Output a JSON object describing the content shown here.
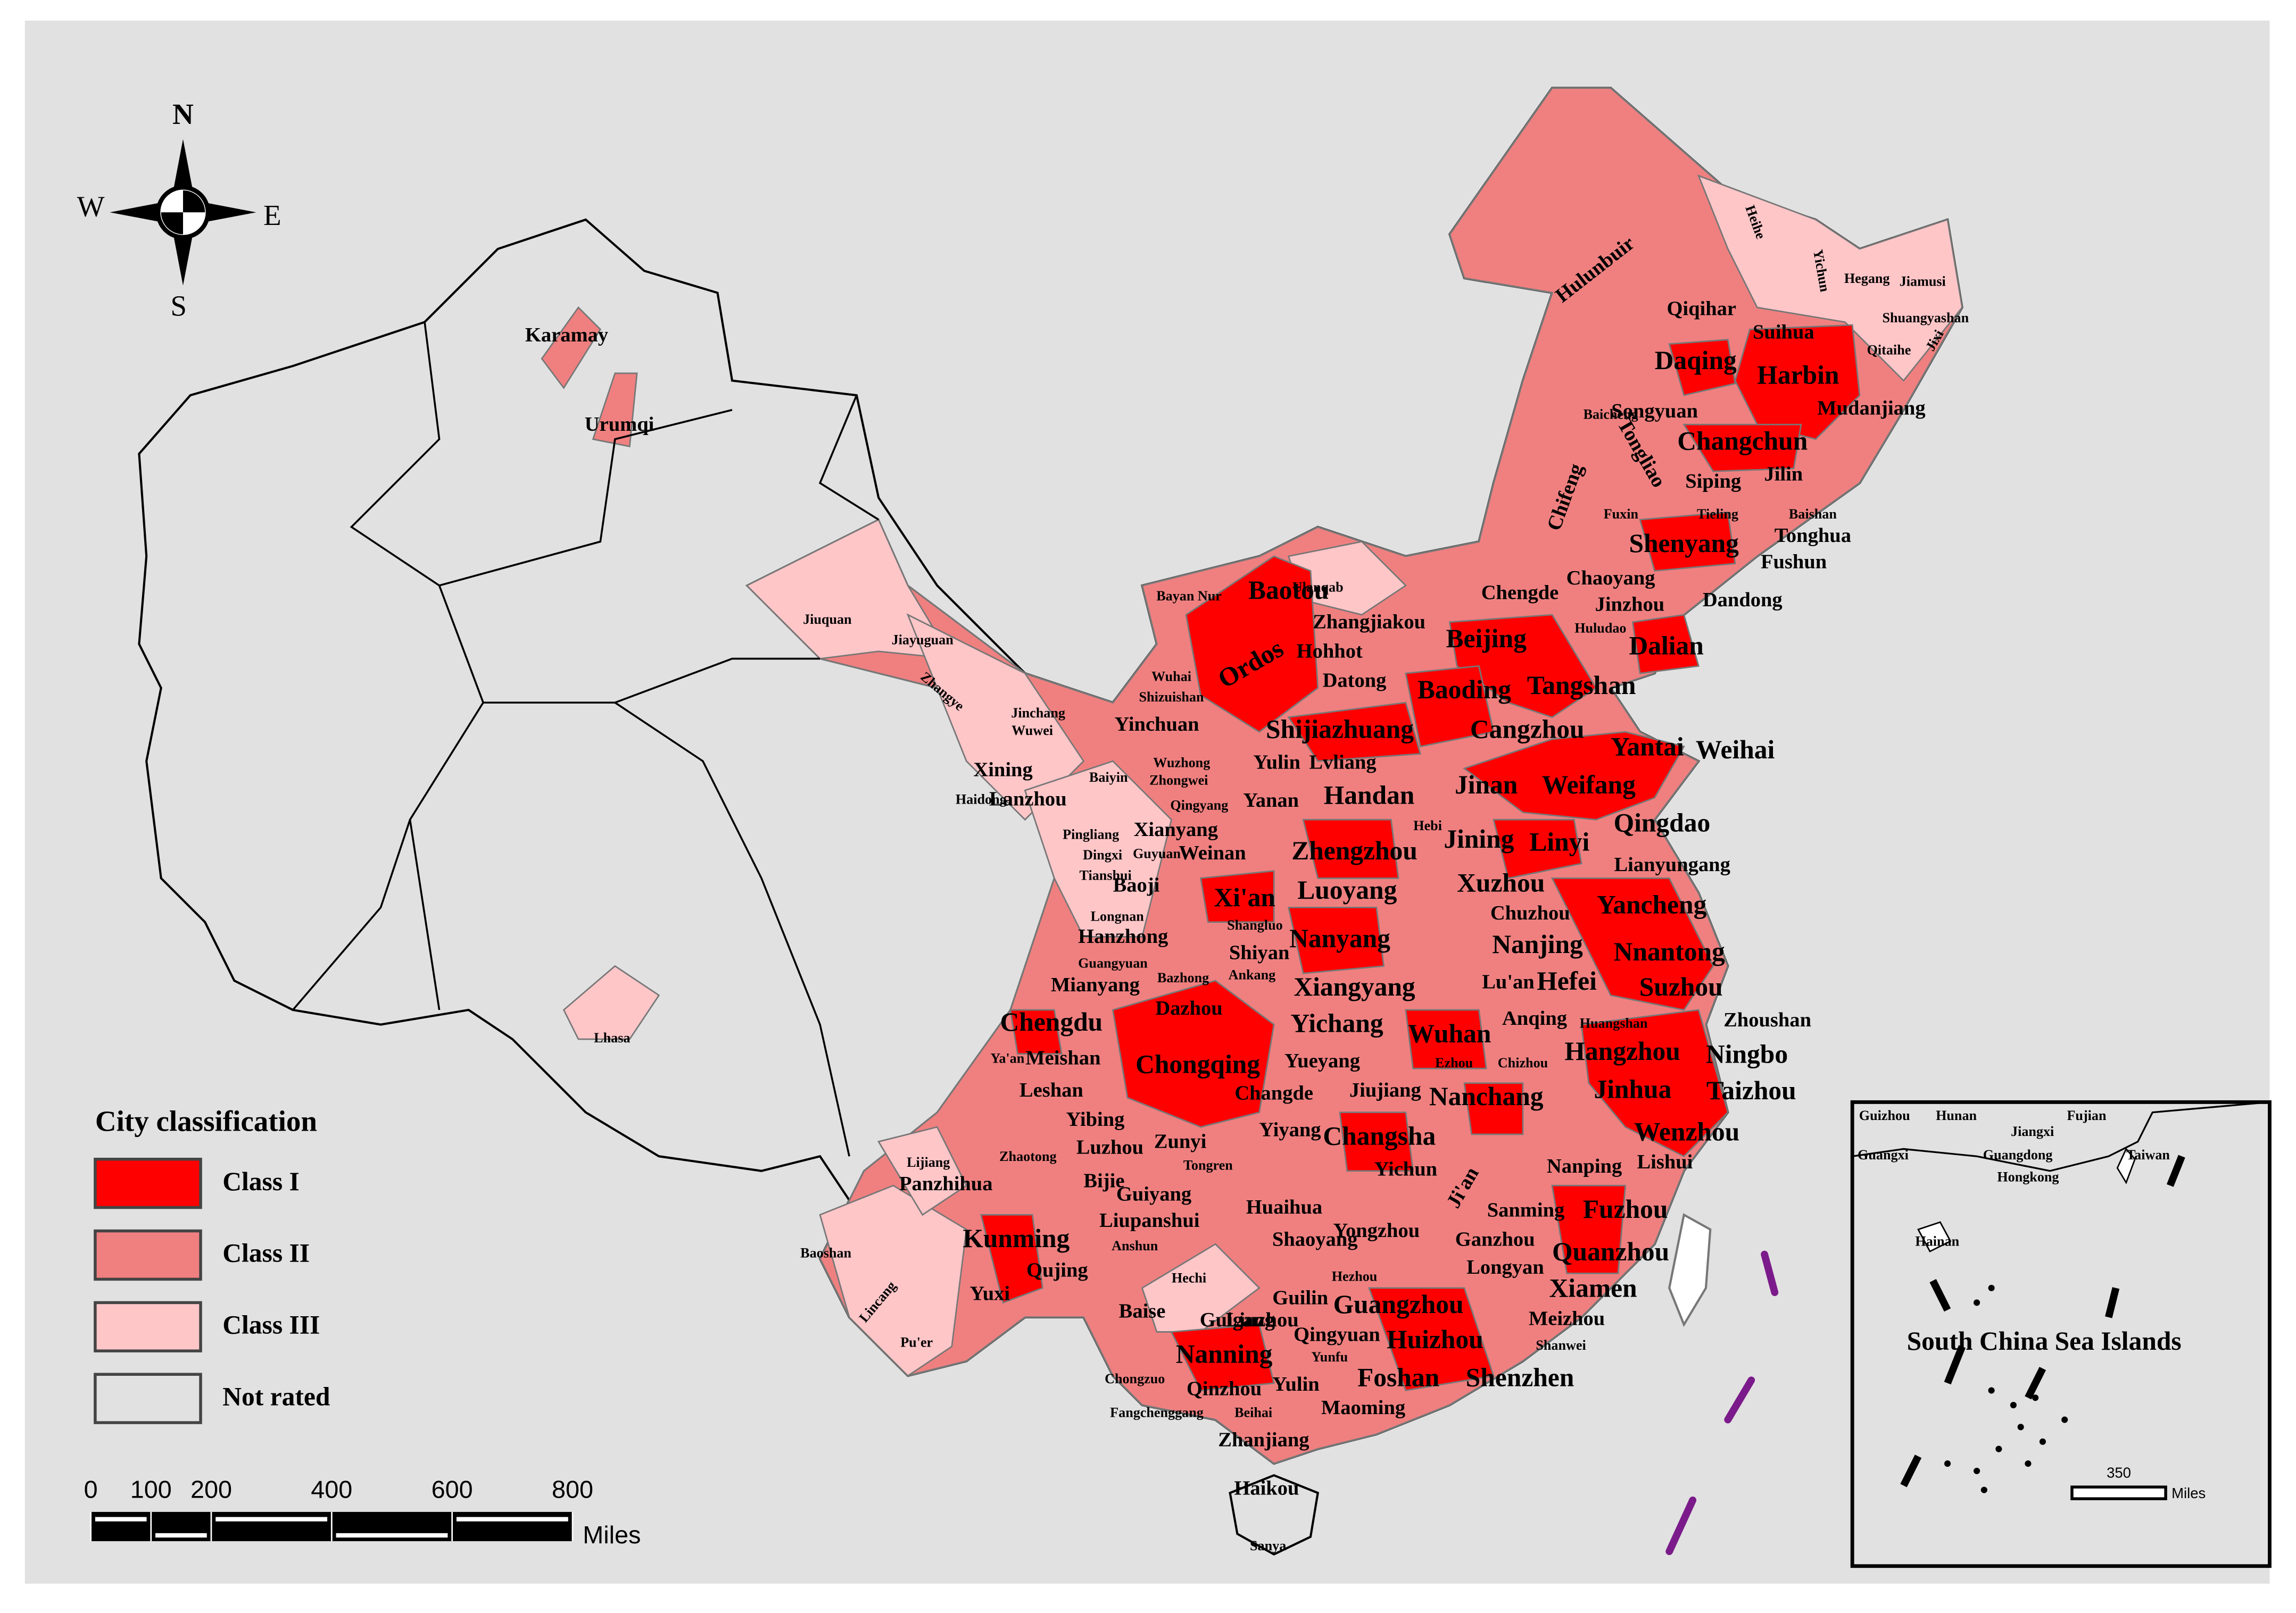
{
  "compass": {
    "north": "N",
    "south": "S",
    "east": "E",
    "west": "W"
  },
  "legend": {
    "title": "City classification",
    "items": [
      {
        "label": "Class I",
        "color": "#ff0000"
      },
      {
        "label": "Class II",
        "color": "#f08080"
      },
      {
        "label": "Class III",
        "color": "#ffc6c8"
      },
      {
        "label": "Not rated",
        "color": "#e1e1e1"
      }
    ]
  },
  "scale_bar": {
    "ticks": [
      0,
      100,
      200,
      400,
      600,
      800
    ],
    "unit": "Miles"
  },
  "inset": {
    "title": "South China Sea Islands",
    "labels": [
      "Guizhou",
      "Hunan",
      "Jiangxi",
      "Fujian",
      "Guangxi",
      "Guangdong",
      "Hongkong",
      "Taiwan",
      "Hainan"
    ],
    "scale": "350",
    "unit": "Miles"
  },
  "cities": [
    "Harbin",
    "Daqing",
    "Changchun",
    "Shenyang",
    "Dalian",
    "Beijing",
    "Tangshan",
    "Baoding",
    "Cangzhou",
    "Shijiazhuang",
    "Baotou",
    "Ordos",
    "Jinan",
    "Weifang",
    "Yantai",
    "Weihai",
    "Qingdao",
    "Handan",
    "Zhengzhou",
    "Jining",
    "Linyi",
    "Xuzhou",
    "Luoyang",
    "Xi'an",
    "Yancheng",
    "Nanyang",
    "Nanjing",
    "Hefei",
    "Nnantong",
    "Suzhou",
    "Xiangyang",
    "Chengdu",
    "Yichang",
    "Wuhan",
    "Hangzhou",
    "Ningbo",
    "Chongqing",
    "Jinhua",
    "Taizhou",
    "Nanchang",
    "Wenzhou",
    "Changsha",
    "Fuzhou",
    "Kunming",
    "Quanzhou",
    "Xiamen",
    "Guangzhou",
    "Huizhou",
    "Nanning",
    "Foshan",
    "Shenzhen",
    "Hulunbuir",
    "Qiqihar",
    "Suihua",
    "Mudanjiang",
    "Songyuan",
    "Jilin",
    "Siping",
    "Tongliao",
    "Chifeng",
    "Tonghua",
    "Fushun",
    "Chaoyang",
    "Dandong",
    "Jinzhou",
    "Chengde",
    "Zhangjiakou",
    "Hohhot",
    "Datong",
    "Yinchuan",
    "Lvliang",
    "Yulin",
    "Lanzhou",
    "Yanan",
    "Xining",
    "Xianyang",
    "Weinan",
    "Baoji",
    "Lianyungang",
    "Chuzhou",
    "Hanzhong",
    "Shiyan",
    "Mianyang",
    "Dazhou",
    "Lu'an",
    "Anqing",
    "Meishan",
    "Leshan",
    "Yueyang",
    "Jiujiang",
    "Changde",
    "Yibing",
    "Yiyang",
    "Luzhou",
    "Zunyi",
    "Panzhihua",
    "Bijie",
    "Huaihua",
    "Guiyang",
    "Yichun",
    "Lishui",
    "Nanping",
    "Liupanshui",
    "Shaoyang",
    "Yongzhou",
    "Sanming",
    "Ji'an",
    "Ganzhou",
    "Longyan",
    "Guilin",
    "Liuzhou",
    "Qujing",
    "Yuxi",
    "Baise",
    "Guigang",
    "Qingyuan",
    "Yulin",
    "Qinzhou",
    "Maoming",
    "Zhanjiang",
    "Haikou",
    "Meizhou",
    "Heihe",
    "Yichun",
    "Hegang",
    "Jiamusi",
    "Shuangyashan",
    "Qitaihe",
    "Jixi",
    "Baicheng",
    "Fuxin",
    "Tieling",
    "Baishan",
    "Huludao",
    "Ulanqab",
    "Bayan Nur",
    "Wuhai",
    "Shizuishan",
    "Jiuquan",
    "Jiayuguan",
    "Zhangye",
    "Jinchang",
    "Wuwei",
    "Baiyin",
    "Wuzhong",
    "Zhongwei",
    "Haidong",
    "Qingyang",
    "Pingliang",
    "Dingxi",
    "Guyuan",
    "Tianshui",
    "Longnan",
    "Shangluo",
    "Guangyuan",
    "Bazhong",
    "Ankang",
    "Hebi",
    "Huangshan",
    "Ezhou",
    "Chizhou",
    "Ya'an",
    "Zhaotong",
    "Lijiang",
    "Tongren",
    "Anshun",
    "Hechi",
    "Hezhou",
    "Baoshan",
    "Lincang",
    "Pu'er",
    "Chongzuo",
    "Yunfu",
    "Shanwei",
    "Fangchenggang",
    "Beihai",
    "Sanya",
    "Karamay",
    "Urumqi",
    "Lhasa",
    "Zhoushan"
  ]
}
